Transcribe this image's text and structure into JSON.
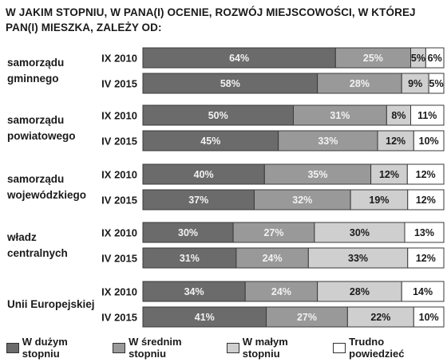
{
  "title": "W JAKIM STOPNIU, W PANA(I) OCENIE, ROZWÓJ MIEJSCOWOŚCI, W KTÓREJ PAN(I) MIESZKA, ZALEŻY OD:",
  "colors": {
    "w_duzym": "#6b6b6b",
    "w_srednim": "#999999",
    "w_malym": "#cfcfcf",
    "trudno": "#ffffff",
    "label_dark_bg": "#f2f2f2",
    "label_light_bg": "#1a1a1a"
  },
  "chart_data": {
    "type": "bar",
    "orientation": "horizontal",
    "stacked": true,
    "normalized": true,
    "title": "W JAKIM STOPNIU, W PANA(I) OCENIE, ROZWÓJ MIEJSCOWOŚCI, W KTÓREJ PAN(I) MIESZKA, ZALEŻY OD:",
    "legend_position": "bottom",
    "series": [
      {
        "name": "W dużym stopniu"
      },
      {
        "name": "W średnim stopniu"
      },
      {
        "name": "W małym stopniu"
      },
      {
        "name": "Trudno powiedzieć"
      }
    ],
    "groups": [
      {
        "label": [
          "samorządu",
          "gminnego"
        ],
        "rows": [
          {
            "label": "IX 2010",
            "values": [
              64,
              25,
              5,
              6
            ]
          },
          {
            "label": "IV 2015",
            "values": [
              58,
              28,
              9,
              5
            ]
          }
        ]
      },
      {
        "label": [
          "samorządu",
          "powiatowego"
        ],
        "rows": [
          {
            "label": "IX 2010",
            "values": [
              50,
              31,
              8,
              11
            ]
          },
          {
            "label": "IV 2015",
            "values": [
              45,
              33,
              12,
              10
            ]
          }
        ]
      },
      {
        "label": [
          "samorządu",
          "wojewódzkiego"
        ],
        "rows": [
          {
            "label": "IX 2010",
            "values": [
              40,
              35,
              12,
              12
            ]
          },
          {
            "label": "IV 2015",
            "values": [
              37,
              32,
              19,
              12
            ]
          }
        ]
      },
      {
        "label": [
          "władz",
          "centralnych"
        ],
        "rows": [
          {
            "label": "IX 2010",
            "values": [
              30,
              27,
              30,
              13
            ]
          },
          {
            "label": "IV 2015",
            "values": [
              31,
              24,
              33,
              12
            ]
          }
        ]
      },
      {
        "label": [
          "Unii Europejskiej"
        ],
        "rows": [
          {
            "label": "IX 2010",
            "values": [
              34,
              24,
              28,
              14
            ]
          },
          {
            "label": "IV 2015",
            "values": [
              41,
              27,
              22,
              10
            ]
          }
        ]
      }
    ]
  }
}
